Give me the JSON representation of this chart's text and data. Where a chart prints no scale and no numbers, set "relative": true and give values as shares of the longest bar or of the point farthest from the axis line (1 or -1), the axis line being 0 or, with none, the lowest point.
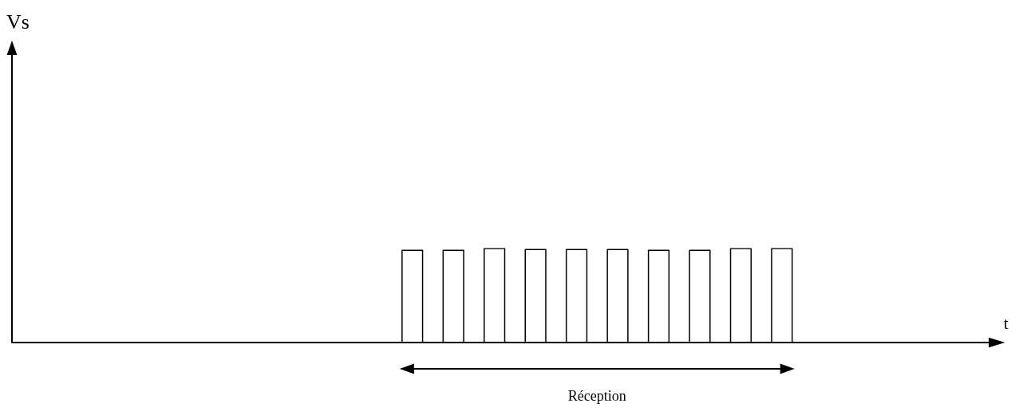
{
  "chart_data": {
    "type": "step",
    "relative": true,
    "xlabel": "t",
    "annotations": [
      "Vs",
      "Réception"
    ],
    "grid": false,
    "marker": "none",
    "categories": [
      null,
      null,
      null,
      null,
      null,
      null,
      null,
      null,
      null,
      null,
      null,
      null,
      null,
      null,
      null,
      null,
      null,
      null,
      null,
      null,
      null,
      null,
      null,
      null,
      null,
      null,
      null,
      null,
      null,
      null,
      null,
      null,
      null,
      null,
      null,
      null,
      null,
      null,
      null,
      null,
      null,
      null,
      null,
      null,
      null,
      null,
      null,
      null,
      null
    ],
    "series": [
      {
        "color": "#000000",
        "values": [
          0,
          0,
          0,
          0,
          0,
          0,
          0,
          0,
          0,
          0,
          0,
          0,
          0,
          0,
          0,
          0,
          0,
          0,
          0,
          0.98,
          0,
          0.98,
          0,
          1,
          0,
          0.99,
          0,
          0.99,
          0,
          0.99,
          0,
          0.98,
          0,
          0.98,
          0,
          1,
          0,
          1,
          0,
          0,
          0,
          0,
          0,
          0,
          0,
          0,
          0,
          0,
          0
        ]
      }
    ]
  }
}
